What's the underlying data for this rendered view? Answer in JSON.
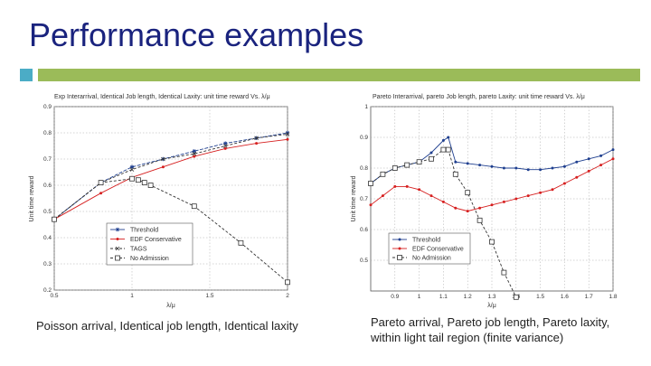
{
  "slide": {
    "title": "Performance examples",
    "accent_colors": {
      "square": "#4bacc6",
      "bar": "#9bbb59",
      "title": "#1a237e"
    },
    "captions": {
      "left": "Poisson arrival, Identical job length, Identical laxity",
      "right": "Pareto arrival, Pareto job length, Pareto laxity, within light tail region (finite variance)"
    }
  },
  "chart_data": [
    {
      "type": "line",
      "title": "Exp Interarrival, Identical Job length, Identical Laxity: unit time reward Vs. λ/μ",
      "xlabel": "λ/μ",
      "ylabel": "Unit time reward",
      "xlim": [
        0.5,
        2
      ],
      "ylim": [
        0.2,
        0.9
      ],
      "xticks": [
        0.5,
        1,
        1.5,
        2
      ],
      "xtick_labels": [
        "0.5",
        "1",
        "1.5",
        "2"
      ],
      "yticks": [
        0.2,
        0.3,
        0.4,
        0.5,
        0.6,
        0.7,
        0.8,
        0.9
      ],
      "ytick_labels": [
        "0.2",
        "0.3",
        "0.4",
        "0.5",
        "0.6",
        "0.7",
        "0.8",
        "0.9"
      ],
      "grid": true,
      "legend_position": "lower-center",
      "series": [
        {
          "name": "Threshold",
          "color": "#1f3f8f",
          "marker": "star",
          "x": [
            0.5,
            0.8,
            1.0,
            1.2,
            1.4,
            1.6,
            1.8,
            2.0
          ],
          "y": [
            0.47,
            0.61,
            0.67,
            0.7,
            0.73,
            0.76,
            0.78,
            0.8
          ]
        },
        {
          "name": "EDF Conservative",
          "color": "#d62020",
          "marker": "dot",
          "x": [
            0.5,
            0.8,
            1.0,
            1.2,
            1.4,
            1.6,
            1.8,
            2.0
          ],
          "y": [
            0.47,
            0.57,
            0.63,
            0.67,
            0.71,
            0.74,
            0.76,
            0.775
          ]
        },
        {
          "name": "TAGS",
          "color": "#333333",
          "marker": "x",
          "x": [
            0.5,
            0.8,
            1.0,
            1.2,
            1.4,
            1.6,
            1.8,
            2.0
          ],
          "y": [
            0.47,
            0.61,
            0.66,
            0.7,
            0.72,
            0.75,
            0.78,
            0.795
          ]
        },
        {
          "name": "No Admission",
          "color": "#333333",
          "marker": "square",
          "x": [
            0.5,
            0.8,
            1.0,
            1.04,
            1.08,
            1.12,
            1.4,
            1.7,
            2.0
          ],
          "y": [
            0.47,
            0.61,
            0.625,
            0.62,
            0.61,
            0.6,
            0.52,
            0.38,
            0.23
          ]
        }
      ]
    },
    {
      "type": "line",
      "title": "Pareto Interarrival, pareto Job length, pareto Laxity: unit time reward Vs. λ/μ",
      "xlabel": "λ/μ",
      "ylabel": "Unit time reward",
      "xlim": [
        0.8,
        1.8
      ],
      "ylim": [
        0.4,
        1.0
      ],
      "xticks": [
        0.9,
        1.0,
        1.1,
        1.2,
        1.3,
        1.4,
        1.5,
        1.6,
        1.7,
        1.8
      ],
      "xtick_labels": [
        "0.9",
        "1",
        "1.1",
        "1.2",
        "1.3",
        "1.4",
        "1.5",
        "1.6",
        "1.7",
        "1.8"
      ],
      "yticks": [
        0.5,
        0.6,
        0.7,
        0.8,
        0.9,
        1.0
      ],
      "ytick_labels": [
        "0.5",
        "0.6",
        "0.7",
        "0.8",
        "0.9",
        "1"
      ],
      "grid": true,
      "legend_position": "lower-center",
      "series": [
        {
          "name": "Threshold",
          "color": "#1f3f8f",
          "marker": "dot",
          "x": [
            0.8,
            0.85,
            0.9,
            0.95,
            1.0,
            1.05,
            1.1,
            1.12,
            1.15,
            1.2,
            1.25,
            1.3,
            1.35,
            1.4,
            1.45,
            1.5,
            1.55,
            1.6,
            1.65,
            1.7,
            1.75,
            1.8
          ],
          "y": [
            0.75,
            0.78,
            0.8,
            0.81,
            0.82,
            0.85,
            0.89,
            0.9,
            0.82,
            0.815,
            0.81,
            0.805,
            0.8,
            0.8,
            0.795,
            0.795,
            0.8,
            0.805,
            0.82,
            0.83,
            0.84,
            0.86
          ]
        },
        {
          "name": "EDF Conservative",
          "color": "#d62020",
          "marker": "dot",
          "x": [
            0.8,
            0.85,
            0.9,
            0.95,
            1.0,
            1.05,
            1.1,
            1.15,
            1.2,
            1.25,
            1.3,
            1.35,
            1.4,
            1.45,
            1.5,
            1.55,
            1.6,
            1.65,
            1.7,
            1.75,
            1.8
          ],
          "y": [
            0.68,
            0.71,
            0.74,
            0.74,
            0.73,
            0.71,
            0.69,
            0.67,
            0.66,
            0.67,
            0.68,
            0.69,
            0.7,
            0.71,
            0.72,
            0.73,
            0.75,
            0.77,
            0.79,
            0.81,
            0.83
          ]
        },
        {
          "name": "No Admission",
          "color": "#333333",
          "marker": "square",
          "x": [
            0.8,
            0.85,
            0.9,
            0.95,
            1.0,
            1.05,
            1.1,
            1.12,
            1.15,
            1.2,
            1.25,
            1.3,
            1.35,
            1.4
          ],
          "y": [
            0.75,
            0.78,
            0.8,
            0.81,
            0.82,
            0.83,
            0.86,
            0.86,
            0.78,
            0.72,
            0.63,
            0.56,
            0.46,
            0.38
          ]
        }
      ]
    }
  ]
}
